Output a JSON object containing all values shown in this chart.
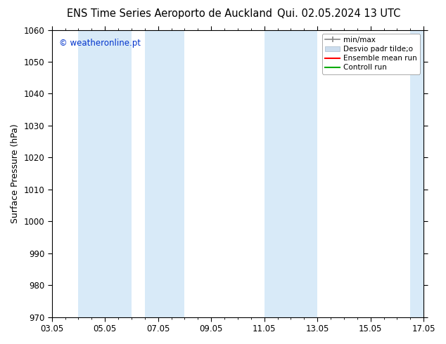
{
  "title_left": "ENS Time Series Aeroporto de Auckland",
  "title_right": "Qui. 02.05.2024 13 UTC",
  "ylabel": "Surface Pressure (hPa)",
  "ylim": [
    970,
    1060
  ],
  "yticks": [
    970,
    980,
    990,
    1000,
    1010,
    1020,
    1030,
    1040,
    1050,
    1060
  ],
  "xtick_labels": [
    "03.05",
    "05.05",
    "07.05",
    "09.05",
    "11.05",
    "13.05",
    "15.05",
    "17.05"
  ],
  "xmin": 0.0,
  "xmax": 14.0,
  "xtick_positions": [
    0,
    2,
    4,
    6,
    8,
    10,
    12,
    14
  ],
  "shaded_regions": [
    {
      "xstart": 1.0,
      "xend": 3.0
    },
    {
      "xstart": 3.5,
      "xend": 5.0
    },
    {
      "xstart": 8.0,
      "xend": 10.0
    },
    {
      "xstart": 13.5,
      "xend": 14.0
    }
  ],
  "shaded_color": "#d8eaf8",
  "watermark_text": "© weatheronline.pt",
  "watermark_color": "#0033cc",
  "legend_entries": [
    {
      "label": "min/max",
      "color": "#888888",
      "lw": 1.2,
      "ls": "-",
      "type": "line_with_caps"
    },
    {
      "label": "Desvio padr tilde;o",
      "color": "#ccddee",
      "lw": 8,
      "ls": "-",
      "type": "thick_line"
    },
    {
      "label": "Ensemble mean run",
      "color": "#ff0000",
      "lw": 1.5,
      "ls": "-",
      "type": "line"
    },
    {
      "label": "Controll run",
      "color": "#00aa00",
      "lw": 1.5,
      "ls": "-",
      "type": "line"
    }
  ],
  "bg_color": "#ffffff",
  "title_fontsize": 10.5,
  "axis_fontsize": 9,
  "tick_fontsize": 8.5,
  "legend_fontsize": 7.5
}
